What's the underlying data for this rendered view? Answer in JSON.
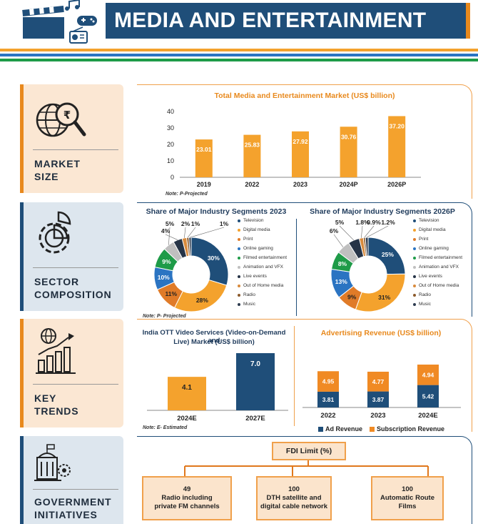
{
  "header": {
    "title": "MEDIA AND ENTERTAINMENT"
  },
  "colors": {
    "navy": "#1f4e79",
    "orange": "#f4a22d",
    "green": "#1e9b48",
    "blue": "#2b74c2"
  },
  "cards": [
    {
      "label_line1": "MARKET",
      "label_line2": "SIZE",
      "icon": "globe-rupee-icon"
    },
    {
      "label_line1": "SECTOR",
      "label_line2": "COMPOSITION",
      "icon": "gear-pie-icon"
    },
    {
      "label_line1": "KEY",
      "label_line2": "TRENDS",
      "icon": "growth-chart-icon"
    },
    {
      "label_line1": "GOVERNMENT",
      "label_line2": "INITIATIVES",
      "icon": "government-building-icon"
    }
  ],
  "market": {
    "title": "Total Media and Entertainment Market (US$ billion)",
    "note": "Note: P-Projected",
    "chart_data": {
      "type": "bar",
      "categories": [
        "2019",
        "2022",
        "2023",
        "2024P",
        "2026P"
      ],
      "values": [
        23.01,
        25.83,
        27.92,
        30.76,
        37.2
      ],
      "value_labels": [
        "23.01",
        "25.83",
        "27.92",
        "30.76",
        "37.20"
      ],
      "yticks": [
        "0",
        "10",
        "20",
        "30",
        "40"
      ],
      "ylim": [
        0,
        40
      ]
    }
  },
  "share2023": {
    "title": "Share of Major Industry Segments 2023",
    "note": "Note: P- Projected",
    "chart_data": {
      "type": "pie",
      "labels": [
        "Television",
        "Digital media",
        "Print",
        "Online gaming",
        "Filmed entertainment",
        "Animation and VFX",
        "Live events",
        "Out of Home media",
        "Radio",
        "Music"
      ],
      "values": [
        30,
        28,
        11,
        10,
        9,
        5,
        4,
        2,
        1,
        1
      ],
      "value_labels": [
        "30%",
        "28%",
        "11%",
        "10%",
        "9%",
        "5%",
        "4%",
        "2%",
        "1%",
        "1%"
      ],
      "colors": [
        "#1f4e79",
        "#f4a22d",
        "#e07b28",
        "#2b74c2",
        "#1e9b48",
        "#bfbfbf",
        "#263447",
        "#d88a3c",
        "#8b5a2b",
        "#2d3b4f"
      ]
    }
  },
  "share2026": {
    "title": "Share of Major Industry Segments 2026P",
    "chart_data": {
      "type": "pie",
      "labels": [
        "Television",
        "Digital media",
        "Print",
        "Online gaming",
        "Filmed entertainment",
        "Animation and VFX",
        "Live events",
        "Out of Home media",
        "Radio",
        "Music"
      ],
      "values": [
        25,
        31,
        9,
        13,
        8,
        6,
        5,
        1.8,
        0.9,
        1.2
      ],
      "value_labels": [
        "25%",
        "31%",
        "9%",
        "13%",
        "8%",
        "6%",
        "5%",
        "1.8%",
        "0.9%",
        "1.2%"
      ],
      "colors": [
        "#1f4e79",
        "#f4a22d",
        "#e07b28",
        "#2b74c2",
        "#1e9b48",
        "#bfbfbf",
        "#263447",
        "#d88a3c",
        "#8b5a2b",
        "#2d3b4f"
      ]
    }
  },
  "ott": {
    "title_line1": "India OTT Video Services (Video-on-Demand and",
    "title_line2": "Live) Market (US$ billion)",
    "note": "Note: E- Estimated",
    "chart_data": {
      "type": "bar",
      "categories": [
        "2024E",
        "2027E"
      ],
      "values": [
        4.1,
        7.0
      ],
      "value_labels": [
        "4.1",
        "7.0"
      ],
      "colors": [
        "#f4a22d",
        "#1f4e79"
      ]
    }
  },
  "adrev": {
    "title": "Advertising Revenue (US$ billion)",
    "chart_data": {
      "type": "bar",
      "stacked": true,
      "categories": [
        "2022",
        "2023",
        "2024E"
      ],
      "series": [
        {
          "name": "Ad Revenue",
          "values": [
            3.81,
            3.87,
            5.42
          ],
          "value_labels": [
            "3.81",
            "3.87",
            "5.42"
          ],
          "color": "#1f4e79"
        },
        {
          "name": "Subscription Revenue",
          "values": [
            4.95,
            4.77,
            4.94
          ],
          "value_labels": [
            "4.95",
            "4.77",
            "4.94"
          ],
          "color": "#f08a24"
        }
      ]
    }
  },
  "fdi": {
    "title": "FDI Limit (%)",
    "boxes": [
      {
        "value": "49",
        "line1": "Radio including",
        "line2": "private FM channels"
      },
      {
        "value": "100",
        "line1": "DTH satellite and",
        "line2": "digital cable network"
      },
      {
        "value": "100",
        "line1": "Automatic Route",
        "line2": "Films"
      }
    ]
  }
}
